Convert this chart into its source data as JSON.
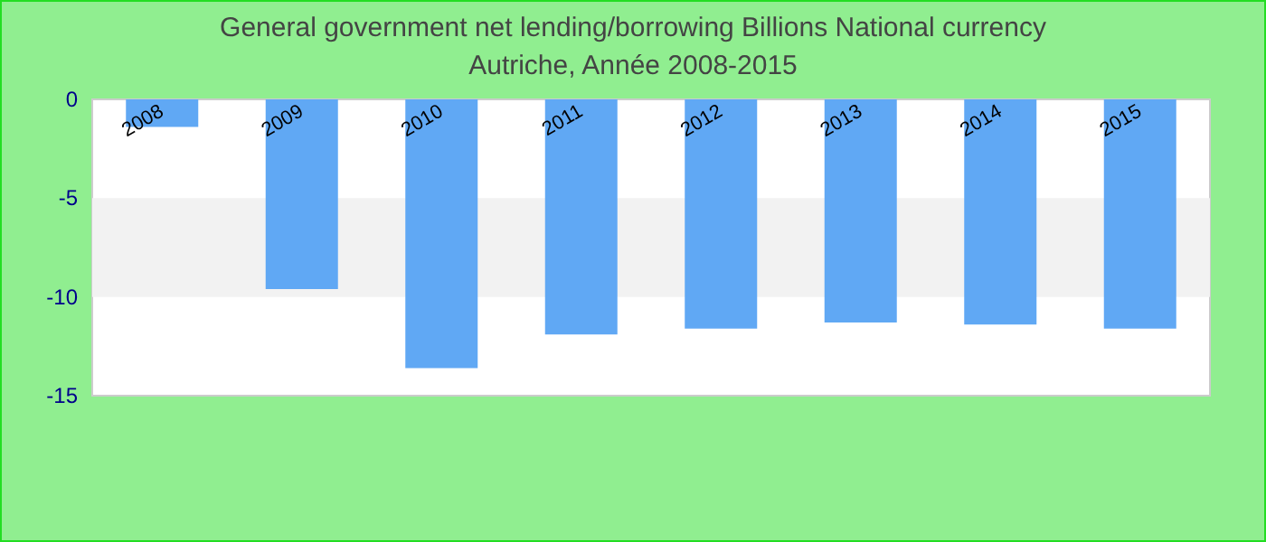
{
  "chart_data": {
    "type": "bar",
    "title": "General government net lending/borrowing Billions National currency",
    "subtitle": "Autriche, Année 2008-2015",
    "categories": [
      "2008",
      "2009",
      "2010",
      "2011",
      "2012",
      "2013",
      "2014",
      "2015"
    ],
    "values": [
      -1.4,
      -9.6,
      -13.6,
      -11.9,
      -11.6,
      -11.3,
      -11.4,
      -11.6
    ],
    "color": "#60a8f4",
    "ylim": [
      -15,
      0
    ],
    "yticks": [
      -15,
      -10,
      -5,
      0
    ],
    "bands": [
      {
        "axis": "y",
        "from": -10,
        "to": -5,
        "color": "#f2f2f2"
      }
    ]
  }
}
